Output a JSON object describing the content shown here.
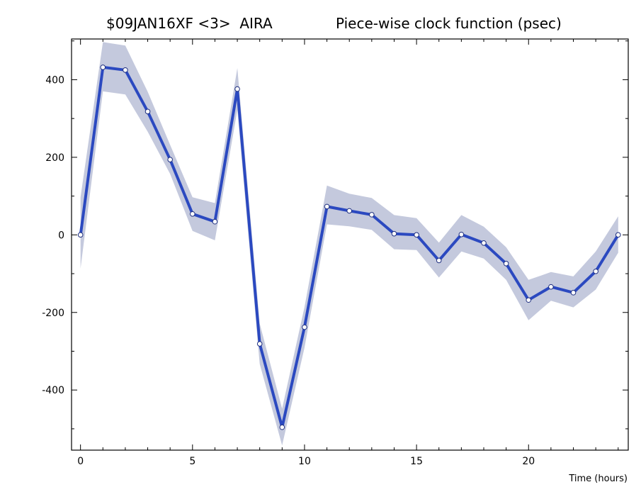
{
  "chart_data": {
    "type": "line",
    "title_left": "$09JAN16XF <3>  AIRA",
    "title_right": "Piece-wise clock function (psec)",
    "xlabel": "Time (hours)",
    "ylabel": "",
    "xlim": [
      -0.4,
      24.45
    ],
    "ylim": [
      -555,
      505
    ],
    "x_ticks": [
      0,
      5,
      10,
      15,
      20
    ],
    "y_ticks": [
      -400,
      -200,
      0,
      200,
      400
    ],
    "x_tick_labels": [
      "0",
      "5",
      "10",
      "15",
      "20"
    ],
    "y_tick_labels": [
      "-400",
      "-200",
      "0",
      "200",
      "400"
    ],
    "grid": false,
    "series": [
      {
        "x": [
          0,
          1,
          2,
          3,
          4,
          5,
          6,
          7,
          8,
          9,
          10,
          11,
          12,
          13,
          14,
          15,
          16,
          17,
          18,
          19,
          20,
          21,
          22,
          23,
          24
        ],
        "values": [
          0,
          432,
          425,
          318,
          194,
          54,
          34,
          376,
          -281,
          -496,
          -238,
          73,
          62,
          52,
          3,
          0,
          -66,
          1,
          -21,
          -74,
          -168,
          -134,
          -149,
          -94,
          0
        ],
        "upper": [
          97,
          497,
          488,
          369,
          232,
          97,
          82,
          430,
          -229,
          -448,
          -186,
          127,
          106,
          95,
          51,
          43,
          -20,
          51,
          21,
          -32,
          -116,
          -96,
          -107,
          -43,
          48
        ],
        "lower": [
          -87,
          370,
          362,
          266,
          157,
          10,
          -14,
          322,
          -333,
          -543,
          -291,
          27,
          22,
          13,
          -37,
          -39,
          -110,
          -43,
          -61,
          -116,
          -220,
          -170,
          -187,
          -141,
          -46
        ]
      }
    ],
    "colors": {
      "line": "#2b49c0",
      "band": "#c4c9dd",
      "marker_fill": "#ffffff"
    }
  }
}
